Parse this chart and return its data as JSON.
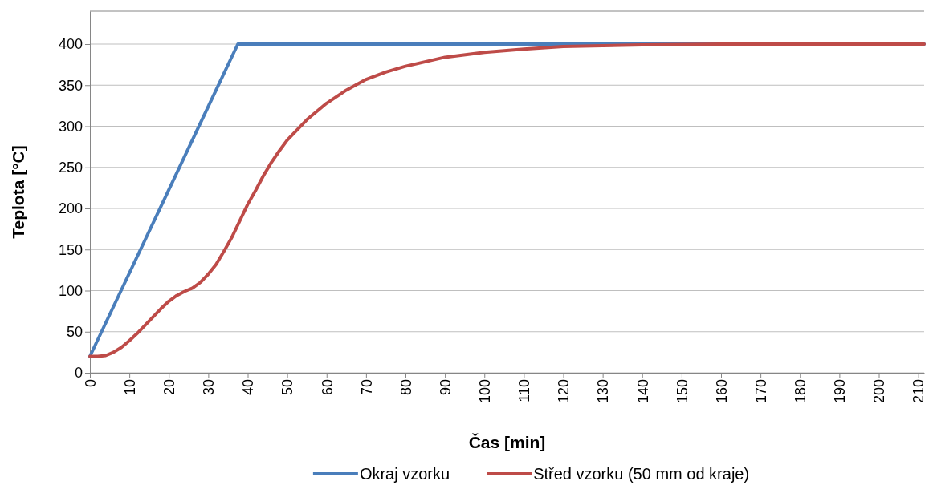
{
  "chart_data": {
    "type": "line",
    "xlabel": "Čas [min]",
    "ylabel": "Teplota [°C]",
    "xlim": [
      0,
      211.5
    ],
    "xticks": [
      0,
      10,
      20,
      30,
      40,
      50,
      60,
      70,
      80,
      90,
      100,
      110,
      120,
      130,
      140,
      150,
      160,
      170,
      180,
      190,
      200,
      210
    ],
    "ylim": [
      0,
      440
    ],
    "yticks": [
      0,
      50,
      100,
      150,
      200,
      250,
      300,
      350,
      400
    ],
    "grid": "y",
    "legend": "bottom",
    "marker": "none",
    "line_style": "solid",
    "series": [
      {
        "name": "Okraj vzorku",
        "color": "#4a7ebb",
        "x": [
          0,
          37.5,
          211.5
        ],
        "values": [
          20,
          400,
          400
        ]
      },
      {
        "name": "Střed vzorku (50 mm od kraje)",
        "color": "#be4b48",
        "x": [
          0,
          2,
          4,
          6,
          8,
          10,
          12,
          14,
          16,
          18,
          20,
          22,
          24,
          26,
          28,
          30,
          32,
          34,
          36,
          38,
          40,
          42,
          44,
          46,
          48,
          50,
          55,
          60,
          65,
          70,
          75,
          80,
          90,
          100,
          110,
          120,
          130,
          140,
          160,
          211.5
        ],
        "values": [
          20,
          20,
          21,
          25,
          31,
          39,
          48,
          58,
          68,
          78,
          87,
          94,
          99,
          103,
          110,
          120,
          132,
          148,
          165,
          185,
          205,
          222,
          240,
          256,
          270,
          283,
          308,
          328,
          344,
          357,
          366,
          373,
          384,
          390,
          394,
          397,
          398,
          399,
          400,
          400
        ]
      }
    ]
  }
}
